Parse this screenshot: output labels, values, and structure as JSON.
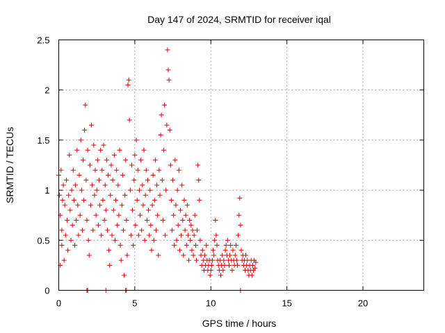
{
  "chart_data": {
    "type": "scatter",
    "title": "Day 147 of 2024, SRMTID for receiver iqal",
    "xlabel": "GPS time / hours",
    "ylabel": "SRMTID / TECUs",
    "xlim": [
      0,
      24
    ],
    "ylim": [
      0,
      2.5
    ],
    "xticks": [
      0,
      5,
      10,
      15,
      20
    ],
    "yticks": [
      0,
      0.5,
      1,
      1.5,
      2,
      2.5
    ],
    "xtick_labels": [
      "0",
      "5",
      "10",
      "15",
      "20"
    ],
    "ytick_labels": [
      "0",
      "0.5",
      "1",
      "1.5",
      "2",
      "2.5"
    ],
    "grid": true,
    "marker": "+",
    "series": [
      {
        "name": "SRMTID",
        "color": "#e00000",
        "points": [
          [
            0.0,
            1.15
          ],
          [
            0.05,
            0.95
          ],
          [
            0.1,
            0.75
          ],
          [
            0.1,
            0.25
          ],
          [
            0.15,
            1.2
          ],
          [
            0.2,
            0.6
          ],
          [
            0.2,
            0.45
          ],
          [
            0.25,
            0.9
          ],
          [
            0.3,
            1.05
          ],
          [
            0.35,
            0.3
          ],
          [
            0.4,
            0.85
          ],
          [
            0.45,
            0.55
          ],
          [
            0.5,
            1.1
          ],
          [
            0.55,
            0.7
          ],
          [
            0.6,
            0.4
          ],
          [
            0.65,
            0.95
          ],
          [
            0.7,
            1.35
          ],
          [
            0.75,
            0.8
          ],
          [
            0.8,
            0.5
          ],
          [
            0.85,
            1.0
          ],
          [
            0.9,
            0.65
          ],
          [
            0.95,
            1.2
          ],
          [
            1.0,
            0.9
          ],
          [
            1.05,
            0.45
          ],
          [
            1.1,
            1.05
          ],
          [
            1.15,
            0.7
          ],
          [
            1.2,
            1.4
          ],
          [
            1.25,
            0.85
          ],
          [
            1.3,
            0.55
          ],
          [
            1.35,
            1.15
          ],
          [
            1.4,
            0.75
          ],
          [
            1.45,
            1.5
          ],
          [
            1.5,
            1.0
          ],
          [
            1.55,
            0.6
          ],
          [
            1.6,
            1.3
          ],
          [
            1.65,
            0.9
          ],
          [
            1.7,
            1.6
          ],
          [
            1.75,
            1.85
          ],
          [
            1.8,
            1.1
          ],
          [
            1.85,
            0.7
          ],
          [
            1.9,
            1.4
          ],
          [
            1.95,
            0.5
          ],
          [
            2.0,
            0.35
          ],
          [
            2.05,
            1.25
          ],
          [
            2.1,
            0.85
          ],
          [
            2.15,
            1.65
          ],
          [
            2.2,
            1.05
          ],
          [
            2.25,
            0.6
          ],
          [
            2.3,
            1.45
          ],
          [
            2.35,
            0.95
          ],
          [
            2.4,
            1.2
          ],
          [
            2.45,
            0.75
          ],
          [
            2.5,
            1.0
          ],
          [
            2.55,
            1.3
          ],
          [
            2.6,
            0.65
          ],
          [
            2.65,
            1.1
          ],
          [
            2.7,
            0.85
          ],
          [
            2.75,
            1.4
          ],
          [
            2.8,
            0.55
          ],
          [
            2.85,
            1.2
          ],
          [
            2.9,
            0.9
          ],
          [
            2.95,
            1.45
          ],
          [
            3.0,
            0.7
          ],
          [
            3.05,
            1.05
          ],
          [
            3.1,
            0.8
          ],
          [
            3.15,
            1.3
          ],
          [
            3.2,
            0.6
          ],
          [
            3.25,
            1.15
          ],
          [
            3.3,
            0.4
          ],
          [
            3.35,
            0.25
          ],
          [
            3.4,
            0.95
          ],
          [
            3.45,
            1.25
          ],
          [
            3.5,
            0.55
          ],
          [
            3.55,
            1.1
          ],
          [
            3.6,
            0.8
          ],
          [
            3.65,
            1.35
          ],
          [
            3.7,
            0.5
          ],
          [
            3.75,
            0.9
          ],
          [
            3.8,
            1.2
          ],
          [
            3.85,
            0.65
          ],
          [
            3.9,
            1.05
          ],
          [
            3.95,
            0.75
          ],
          [
            4.0,
            1.4
          ],
          [
            4.05,
            0.45
          ],
          [
            4.1,
            0.3
          ],
          [
            4.15,
            0.85
          ],
          [
            4.2,
            1.15
          ],
          [
            4.25,
            0.6
          ],
          [
            4.3,
            0.15
          ],
          [
            4.35,
            0.95
          ],
          [
            4.4,
            1.3
          ],
          [
            4.45,
            0.7
          ],
          [
            4.5,
            0.35
          ],
          [
            4.55,
            2.05
          ],
          [
            4.6,
            2.1
          ],
          [
            4.65,
            1.7
          ],
          [
            4.7,
            1.0
          ],
          [
            4.75,
            0.55
          ],
          [
            4.8,
            1.25
          ],
          [
            4.85,
            0.8
          ],
          [
            4.9,
            0.45
          ],
          [
            4.95,
            1.1
          ],
          [
            5.0,
            1.35
          ],
          [
            5.05,
            0.65
          ],
          [
            5.1,
            1.5
          ],
          [
            5.15,
            0.9
          ],
          [
            5.2,
            1.2
          ],
          [
            5.25,
            0.55
          ],
          [
            5.3,
            1.0
          ],
          [
            5.35,
            0.75
          ],
          [
            5.4,
            1.3
          ],
          [
            5.45,
            0.6
          ],
          [
            5.5,
            1.05
          ],
          [
            5.55,
            0.85
          ],
          [
            5.6,
            1.4
          ],
          [
            5.65,
            0.5
          ],
          [
            5.7,
            0.95
          ],
          [
            5.75,
            1.2
          ],
          [
            5.8,
            0.7
          ],
          [
            5.85,
            1.1
          ],
          [
            5.9,
            0.8
          ],
          [
            5.95,
            0.55
          ],
          [
            6.0,
            1.0
          ],
          [
            6.05,
            0.65
          ],
          [
            6.1,
            0.4
          ],
          [
            6.15,
            0.85
          ],
          [
            6.2,
            1.15
          ],
          [
            6.25,
            0.5
          ],
          [
            6.3,
            0.9
          ],
          [
            6.35,
            1.3
          ],
          [
            6.4,
            0.6
          ],
          [
            6.45,
            1.05
          ],
          [
            6.5,
            0.75
          ],
          [
            6.55,
            0.35
          ],
          [
            6.6,
            1.2
          ],
          [
            6.65,
            0.95
          ],
          [
            6.7,
            1.55
          ],
          [
            6.75,
            1.75
          ],
          [
            6.8,
            1.1
          ],
          [
            6.85,
            0.7
          ],
          [
            6.9,
            1.4
          ],
          [
            6.95,
            1.85
          ],
          [
            7.0,
            0.55
          ],
          [
            7.05,
            1.0
          ],
          [
            7.1,
            1.65
          ],
          [
            7.15,
            2.4
          ],
          [
            7.2,
            2.2
          ],
          [
            7.25,
            2.1
          ],
          [
            7.3,
            1.6
          ],
          [
            7.35,
            1.25
          ],
          [
            7.4,
            0.9
          ],
          [
            7.45,
            0.6
          ],
          [
            7.5,
            1.1
          ],
          [
            7.55,
            0.75
          ],
          [
            7.6,
            0.45
          ],
          [
            7.65,
            1.3
          ],
          [
            7.7,
            0.85
          ],
          [
            7.75,
            0.5
          ],
          [
            7.8,
            1.0
          ],
          [
            7.85,
            0.65
          ],
          [
            7.9,
            1.2
          ],
          [
            7.95,
            0.4
          ],
          [
            8.0,
            0.8
          ],
          [
            8.05,
            0.55
          ],
          [
            8.1,
            1.05
          ],
          [
            8.15,
            0.7
          ],
          [
            8.2,
            0.35
          ],
          [
            8.25,
            0.9
          ],
          [
            8.3,
            0.6
          ],
          [
            8.35,
            0.75
          ],
          [
            8.4,
            0.45
          ],
          [
            8.45,
            0.85
          ],
          [
            8.5,
            0.55
          ],
          [
            8.55,
            0.3
          ],
          [
            8.6,
            0.7
          ],
          [
            8.65,
            0.5
          ],
          [
            8.7,
            0.65
          ],
          [
            8.75,
            0.4
          ],
          [
            8.8,
            0.6
          ],
          [
            8.85,
            0.35
          ],
          [
            8.9,
            0.55
          ],
          [
            8.95,
            0.75
          ],
          [
            9.0,
            0.45
          ],
          [
            9.05,
            0.3
          ],
          [
            9.1,
            0.6
          ],
          [
            9.15,
            1.25
          ],
          [
            9.2,
            1.1
          ],
          [
            9.25,
            0.9
          ],
          [
            9.3,
            0.5
          ],
          [
            9.35,
            0.35
          ],
          [
            9.4,
            0.25
          ],
          [
            9.45,
            0.4
          ],
          [
            9.5,
            0.3
          ],
          [
            9.55,
            0.2
          ],
          [
            9.6,
            0.35
          ],
          [
            9.65,
            0.25
          ],
          [
            9.7,
            0.45
          ],
          [
            9.75,
            0.3
          ],
          [
            9.8,
            0.2
          ],
          [
            9.85,
            0.25
          ],
          [
            9.9,
            0.3
          ],
          [
            9.95,
            0.15
          ],
          [
            10.0,
            0.2
          ],
          [
            10.05,
            0.25
          ],
          [
            10.1,
            0.3
          ],
          [
            10.15,
            0.4
          ],
          [
            10.2,
            0.35
          ],
          [
            10.25,
            0.5
          ],
          [
            10.3,
            0.7
          ],
          [
            10.35,
            0.55
          ],
          [
            10.4,
            0.45
          ],
          [
            10.45,
            0.3
          ],
          [
            10.5,
            0.25
          ],
          [
            10.55,
            0.2
          ],
          [
            10.6,
            0.3
          ],
          [
            10.65,
            0.15
          ],
          [
            10.7,
            0.25
          ],
          [
            10.75,
            0.35
          ],
          [
            10.8,
            0.2
          ],
          [
            10.85,
            0.3
          ],
          [
            10.9,
            0.25
          ],
          [
            10.95,
            0.4
          ],
          [
            11.0,
            0.45
          ],
          [
            11.05,
            0.35
          ],
          [
            11.1,
            0.5
          ],
          [
            11.15,
            0.3
          ],
          [
            11.2,
            0.25
          ],
          [
            11.25,
            0.35
          ],
          [
            11.3,
            0.45
          ],
          [
            11.35,
            0.3
          ],
          [
            11.4,
            0.2
          ],
          [
            11.45,
            0.4
          ],
          [
            11.5,
            0.3
          ],
          [
            11.55,
            0.25
          ],
          [
            11.6,
            0.35
          ],
          [
            11.65,
            0.45
          ],
          [
            11.7,
            0.3
          ],
          [
            11.75,
            0.25
          ],
          [
            11.8,
            0.55
          ],
          [
            11.85,
            0.75
          ],
          [
            11.9,
            0.92
          ],
          [
            11.95,
            0.65
          ],
          [
            12.0,
            0.4
          ],
          [
            12.05,
            0.3
          ],
          [
            12.1,
            0.35
          ],
          [
            12.15,
            0.25
          ],
          [
            12.2,
            0.3
          ],
          [
            12.25,
            0.2
          ],
          [
            12.3,
            0.35
          ],
          [
            12.35,
            0.25
          ],
          [
            12.4,
            0.3
          ],
          [
            12.45,
            0.2
          ],
          [
            12.5,
            0.15
          ],
          [
            12.55,
            0.25
          ],
          [
            12.6,
            0.2
          ],
          [
            12.65,
            0.3
          ],
          [
            12.7,
            0.15
          ],
          [
            12.75,
            0.25
          ],
          [
            12.8,
            0.2
          ],
          [
            12.85,
            0.3
          ],
          [
            12.9,
            0.22
          ],
          [
            12.95,
            0.28
          ],
          [
            1.85,
            0.0
          ],
          [
            1.9,
            0.0
          ],
          [
            3.1,
            0.0
          ],
          [
            4.4,
            0.0
          ],
          [
            4.45,
            0.0
          ],
          [
            11.95,
            0.0
          ]
        ]
      }
    ]
  }
}
